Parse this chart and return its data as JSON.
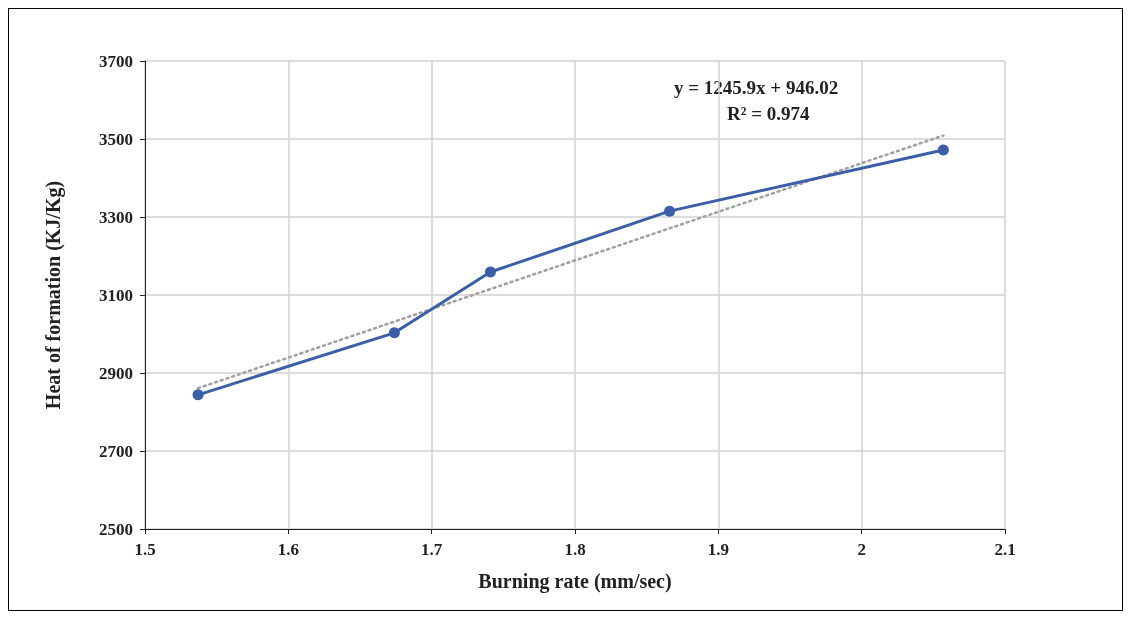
{
  "chart_data": {
    "type": "line",
    "xlabel": "Burning rate (mm/sec)",
    "ylabel": "Heat of formation (KJ/Kg)",
    "series": [
      {
        "color": "#3a5fa8",
        "x": [
          1.537,
          1.674,
          1.741,
          1.866,
          2.057
        ],
        "values": [
          2844,
          3003,
          3159,
          3315,
          3472
        ],
        "marker": "circle",
        "line_style": "solid"
      },
      {
        "color": "#a0a0a0",
        "x": [
          1.537,
          2.057
        ],
        "values": [
          2861,
          3509
        ],
        "marker": "none",
        "line_style": "dotted"
      }
    ],
    "annotations": [
      "y = 1245.9x + 946.02",
      "R² = 0.974"
    ],
    "xlim": [
      1.5,
      2.1
    ],
    "xticks": [
      1.5,
      1.6,
      1.7,
      1.8,
      1.9,
      2,
      2.1
    ],
    "ylim": [
      2500,
      3700
    ],
    "yticks": [
      2500,
      2700,
      2900,
      3100,
      3300,
      3500,
      3700
    ],
    "grid": true
  }
}
